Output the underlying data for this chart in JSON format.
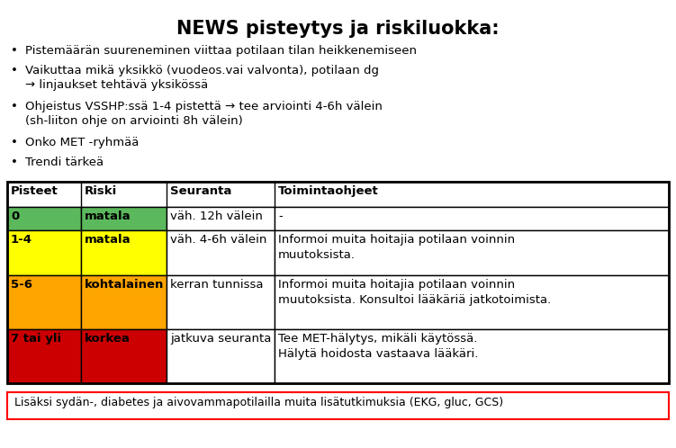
{
  "title": "NEWS pisteytys ja riskiluokka:",
  "bullets": [
    "Pistemäärän suureneminen viittaa potilaan tilan heikkenemiseen",
    "Vaikuttaa mikä yksikkö (vuodeos.vai valvonta), potilaan dg\n→ linjaukset tehtävä yksikössä",
    "Ohjeistus VSSHP:ssä 1-4 pistettä → tee arviointi 4-6h välein\n(sh-liiton ohje on arviointi 8h välein)",
    "Onko MET -ryhmää",
    "Trendi tärkeä"
  ],
  "table_headers": [
    "Pisteet",
    "Riski",
    "Seuranta",
    "Toimintaohjeet"
  ],
  "table_rows": [
    {
      "pisteet": "0",
      "riski": "matala",
      "seuranta": "väh. 12h välein",
      "toiminta": "-",
      "pisteet_color": "#5cb85c",
      "riski_color": "#5cb85c"
    },
    {
      "pisteet": "1-4",
      "riski": "matala",
      "seuranta": "väh. 4-6h välein",
      "toiminta": "Informoi muita hoitajia potilaan voinnin\nmuutoksista.",
      "pisteet_color": "#ffff00",
      "riski_color": "#ffff00"
    },
    {
      "pisteet": "5-6",
      "riski": "kohtalainen",
      "seuranta": "kerran tunnissa",
      "toiminta": "Informoi muita hoitajia potilaan voinnin\nmuutoksista. Konsultoi lääkäriä jatkotoimista.",
      "pisteet_color": "#ffa500",
      "riski_color": "#ffa500"
    },
    {
      "pisteet": "7 tai yli",
      "riski": "korkea",
      "seuranta": "jatkuva seuranta",
      "toiminta": "Tee MET-hälytys, mikäli käytössä.\nHälytä hoidosta vastaava lääkäri.",
      "pisteet_color": "#cc0000",
      "riski_color": "#cc0000"
    }
  ],
  "footer": "Lisäksi sydän-, diabetes ja aivovammapotilailla muita lisätutkimuksia (EKG, gluc, GCS)",
  "bg_color": "#ffffff",
  "title_fontsize": 15,
  "body_fontsize": 9.5,
  "bullet_fontsize": 9.5,
  "header_fontsize": 9.5,
  "footer_fontsize": 9.0
}
